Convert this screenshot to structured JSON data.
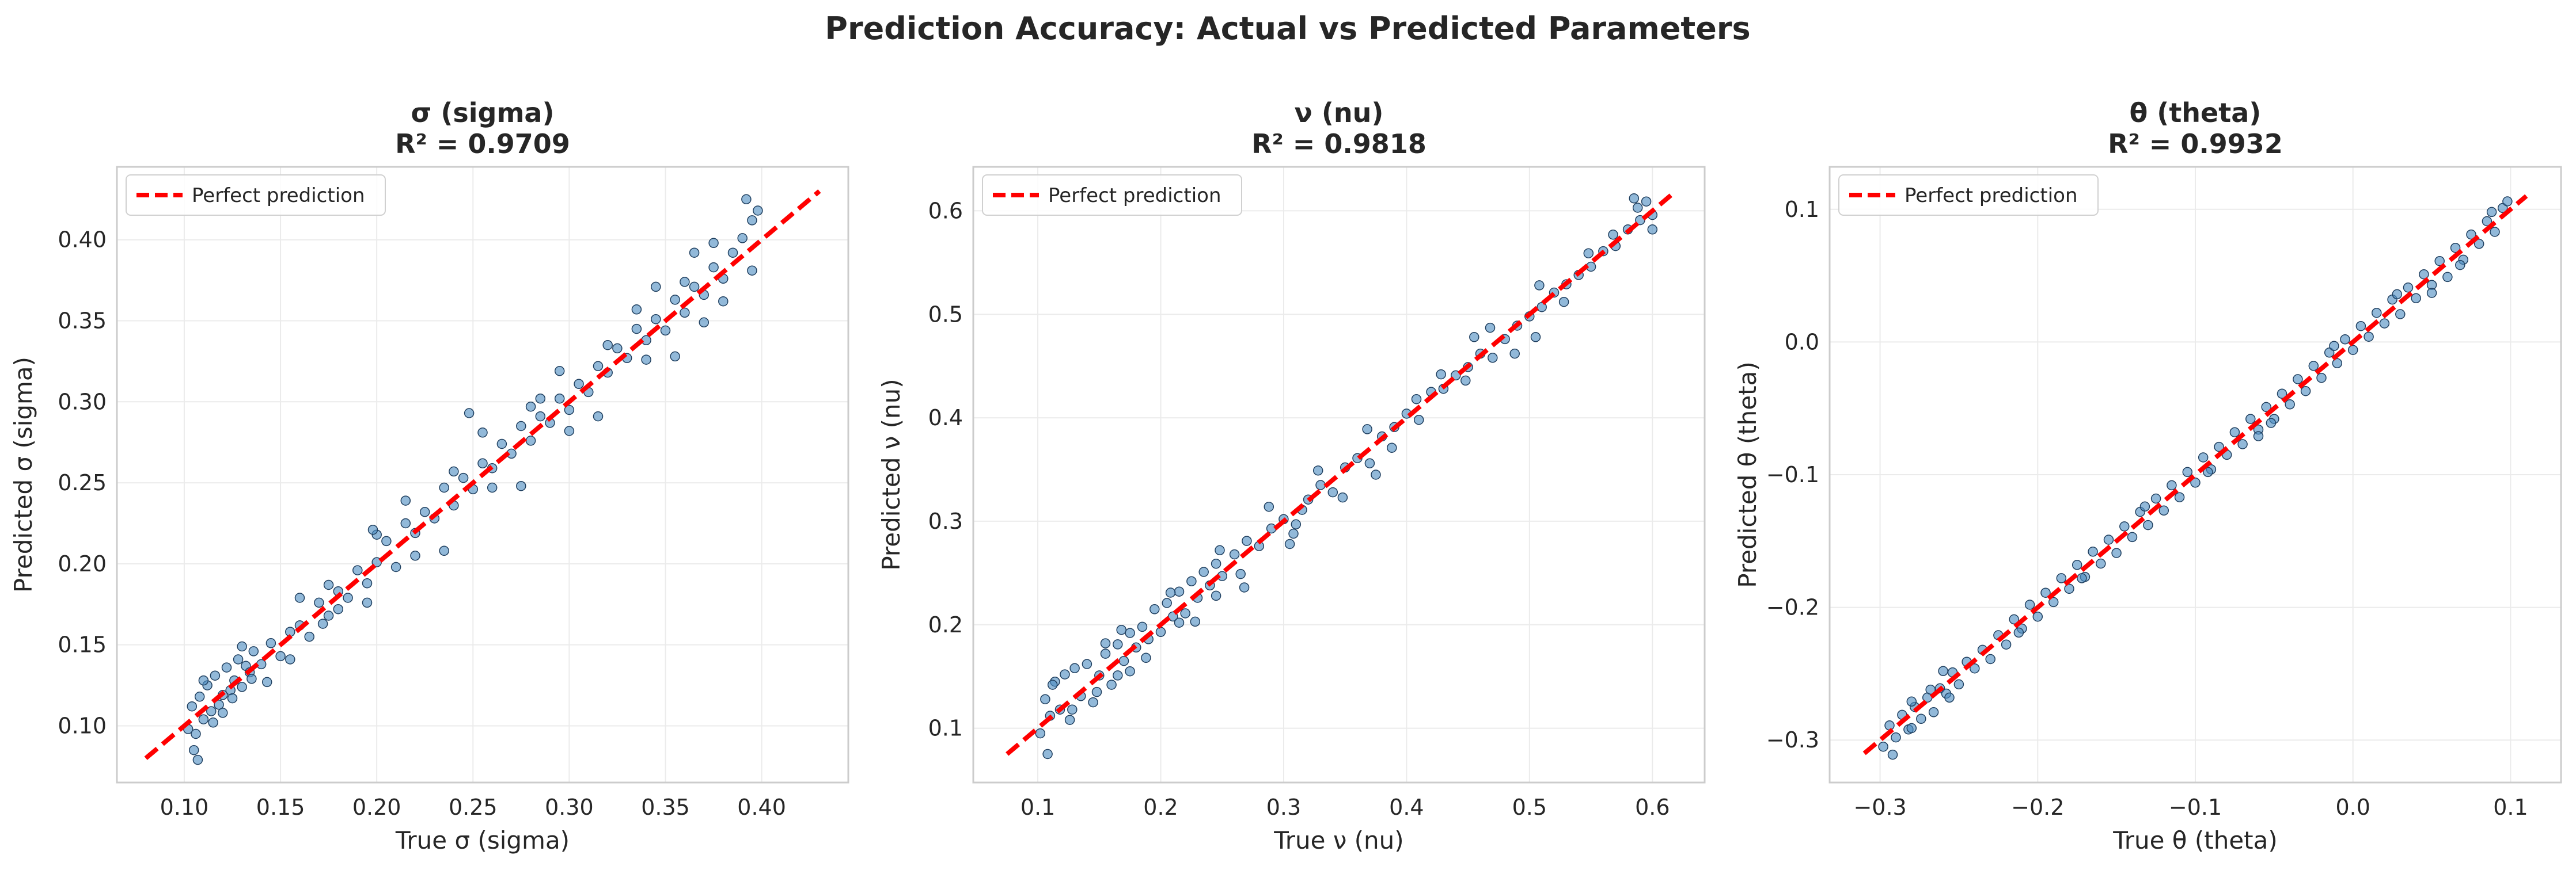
{
  "figure": {
    "title": "Prediction Accuracy: Actual vs Predicted Parameters"
  },
  "colors": {
    "point_fill": "#4a8bbf",
    "point_edge": "#1f3f5f",
    "reference_line": "#ff0000",
    "grid": "#ebebeb",
    "frame": "#cccccc"
  },
  "chart_data": [
    {
      "type": "scatter",
      "title_line1": "σ (sigma)",
      "title_line2": "R² = 0.9709",
      "xlabel": "True σ (sigma)",
      "ylabel": "Predicted σ (sigma)",
      "xlim": [
        0.065,
        0.445
      ],
      "ylim": [
        0.065,
        0.445
      ],
      "xticks": [
        0.1,
        0.15,
        0.2,
        0.25,
        0.3,
        0.35,
        0.4
      ],
      "yticks": [
        0.1,
        0.15,
        0.2,
        0.25,
        0.3,
        0.35,
        0.4
      ],
      "xtick_labels": [
        "0.10",
        "0.15",
        "0.20",
        "0.25",
        "0.30",
        "0.35",
        "0.40"
      ],
      "ytick_labels": [
        "0.10",
        "0.15",
        "0.20",
        "0.25",
        "0.30",
        "0.35",
        "0.40"
      ],
      "grid": true,
      "legend": {
        "label": "Perfect prediction",
        "position": "top-left"
      },
      "reference_line": {
        "from": [
          0.08,
          0.08
        ],
        "to": [
          0.43,
          0.43
        ]
      },
      "points": {
        "x": [
          0.102,
          0.104,
          0.106,
          0.108,
          0.11,
          0.112,
          0.114,
          0.116,
          0.118,
          0.12,
          0.122,
          0.124,
          0.126,
          0.128,
          0.13,
          0.132,
          0.134,
          0.136,
          0.14,
          0.145,
          0.15,
          0.155,
          0.16,
          0.165,
          0.17,
          0.175,
          0.18,
          0.185,
          0.19,
          0.195,
          0.2,
          0.205,
          0.21,
          0.215,
          0.22,
          0.225,
          0.23,
          0.235,
          0.24,
          0.245,
          0.25,
          0.255,
          0.26,
          0.265,
          0.27,
          0.275,
          0.28,
          0.285,
          0.29,
          0.295,
          0.3,
          0.305,
          0.31,
          0.315,
          0.32,
          0.325,
          0.33,
          0.335,
          0.34,
          0.345,
          0.35,
          0.355,
          0.36,
          0.365,
          0.37,
          0.375,
          0.38,
          0.385,
          0.39,
          0.395,
          0.105,
          0.115,
          0.125,
          0.135,
          0.155,
          0.175,
          0.195,
          0.215,
          0.235,
          0.255,
          0.275,
          0.295,
          0.315,
          0.335,
          0.355,
          0.375,
          0.395,
          0.11,
          0.12,
          0.13,
          0.16,
          0.18,
          0.2,
          0.22,
          0.24,
          0.26,
          0.28,
          0.3,
          0.32,
          0.34,
          0.36,
          0.38,
          0.392,
          0.398,
          0.37,
          0.365,
          0.345,
          0.285,
          0.248,
          0.198,
          0.172,
          0.143,
          0.107
        ],
        "y": [
          0.098,
          0.112,
          0.095,
          0.118,
          0.104,
          0.125,
          0.109,
          0.131,
          0.113,
          0.119,
          0.136,
          0.122,
          0.128,
          0.141,
          0.124,
          0.137,
          0.133,
          0.146,
          0.138,
          0.151,
          0.143,
          0.158,
          0.162,
          0.155,
          0.176,
          0.168,
          0.183,
          0.179,
          0.196,
          0.188,
          0.201,
          0.214,
          0.198,
          0.225,
          0.219,
          0.232,
          0.228,
          0.247,
          0.236,
          0.253,
          0.246,
          0.262,
          0.259,
          0.274,
          0.268,
          0.285,
          0.276,
          0.291,
          0.287,
          0.302,
          0.295,
          0.311,
          0.306,
          0.322,
          0.318,
          0.333,
          0.327,
          0.345,
          0.338,
          0.351,
          0.344,
          0.363,
          0.355,
          0.371,
          0.366,
          0.383,
          0.376,
          0.392,
          0.401,
          0.412,
          0.085,
          0.102,
          0.117,
          0.129,
          0.141,
          0.187,
          0.176,
          0.239,
          0.208,
          0.281,
          0.248,
          0.319,
          0.291,
          0.357,
          0.328,
          0.398,
          0.381,
          0.128,
          0.108,
          0.149,
          0.179,
          0.172,
          0.218,
          0.205,
          0.257,
          0.247,
          0.297,
          0.282,
          0.335,
          0.326,
          0.374,
          0.362,
          0.425,
          0.418,
          0.349,
          0.392,
          0.371,
          0.302,
          0.293,
          0.221,
          0.163,
          0.127,
          0.079
        ]
      }
    },
    {
      "type": "scatter",
      "title_line1": "ν (nu)",
      "title_line2": "R² = 0.9818",
      "xlabel": "True ν (nu)",
      "ylabel": "Predicted ν (nu)",
      "xlim": [
        0.0475,
        0.6425
      ],
      "ylim": [
        0.0475,
        0.6425
      ],
      "xticks": [
        0.1,
        0.2,
        0.3,
        0.4,
        0.5,
        0.6
      ],
      "yticks": [
        0.1,
        0.2,
        0.3,
        0.4,
        0.5,
        0.6
      ],
      "xtick_labels": [
        "0.1",
        "0.2",
        "0.3",
        "0.4",
        "0.5",
        "0.6"
      ],
      "ytick_labels": [
        "0.1",
        "0.2",
        "0.3",
        "0.4",
        "0.5",
        "0.6"
      ],
      "grid": true,
      "legend": {
        "label": "Perfect prediction",
        "position": "top-left"
      },
      "reference_line": {
        "from": [
          0.075,
          0.075
        ],
        "to": [
          0.615,
          0.615
        ]
      },
      "points": {
        "x": [
          0.102,
          0.106,
          0.11,
          0.114,
          0.118,
          0.122,
          0.126,
          0.13,
          0.135,
          0.14,
          0.145,
          0.15,
          0.155,
          0.16,
          0.165,
          0.17,
          0.175,
          0.18,
          0.185,
          0.19,
          0.195,
          0.2,
          0.205,
          0.21,
          0.215,
          0.22,
          0.225,
          0.23,
          0.235,
          0.24,
          0.245,
          0.25,
          0.26,
          0.27,
          0.28,
          0.29,
          0.3,
          0.31,
          0.32,
          0.33,
          0.34,
          0.35,
          0.36,
          0.37,
          0.38,
          0.39,
          0.4,
          0.41,
          0.42,
          0.43,
          0.44,
          0.45,
          0.46,
          0.47,
          0.48,
          0.49,
          0.5,
          0.51,
          0.52,
          0.53,
          0.54,
          0.55,
          0.56,
          0.57,
          0.58,
          0.59,
          0.595,
          0.6,
          0.108,
          0.128,
          0.148,
          0.168,
          0.188,
          0.208,
          0.228,
          0.248,
          0.268,
          0.288,
          0.308,
          0.328,
          0.348,
          0.368,
          0.388,
          0.408,
          0.428,
          0.448,
          0.468,
          0.488,
          0.508,
          0.528,
          0.548,
          0.568,
          0.588,
          0.155,
          0.175,
          0.245,
          0.305,
          0.375,
          0.455,
          0.505,
          0.585,
          0.6,
          0.112,
          0.165,
          0.215,
          0.265,
          0.315
        ],
        "y": [
          0.095,
          0.128,
          0.112,
          0.145,
          0.118,
          0.152,
          0.108,
          0.158,
          0.131,
          0.162,
          0.125,
          0.151,
          0.172,
          0.142,
          0.181,
          0.165,
          0.192,
          0.178,
          0.198,
          0.186,
          0.215,
          0.193,
          0.221,
          0.208,
          0.232,
          0.211,
          0.242,
          0.226,
          0.251,
          0.238,
          0.259,
          0.247,
          0.268,
          0.281,
          0.276,
          0.293,
          0.302,
          0.297,
          0.321,
          0.335,
          0.328,
          0.352,
          0.361,
          0.356,
          0.382,
          0.391,
          0.404,
          0.398,
          0.425,
          0.428,
          0.441,
          0.449,
          0.462,
          0.458,
          0.476,
          0.489,
          0.498,
          0.507,
          0.521,
          0.529,
          0.538,
          0.546,
          0.561,
          0.566,
          0.582,
          0.591,
          0.609,
          0.596,
          0.075,
          0.118,
          0.135,
          0.195,
          0.168,
          0.231,
          0.203,
          0.272,
          0.236,
          0.314,
          0.288,
          0.349,
          0.323,
          0.389,
          0.371,
          0.418,
          0.442,
          0.436,
          0.487,
          0.462,
          0.528,
          0.512,
          0.559,
          0.577,
          0.603,
          0.182,
          0.155,
          0.228,
          0.278,
          0.345,
          0.478,
          0.478,
          0.612,
          0.582,
          0.142,
          0.151,
          0.202,
          0.249,
          0.311
        ]
      }
    },
    {
      "type": "scatter",
      "title_line1": "θ (theta)",
      "title_line2": "R² = 0.9932",
      "xlabel": "True θ (theta)",
      "ylabel": "Predicted θ (theta)",
      "xlim": [
        -0.332,
        0.132
      ],
      "ylim": [
        -0.332,
        0.132
      ],
      "xticks": [
        -0.3,
        -0.2,
        -0.1,
        0.0,
        0.1
      ],
      "yticks": [
        -0.3,
        -0.2,
        -0.1,
        0.0,
        0.1
      ],
      "xtick_labels": [
        "−0.3",
        "−0.2",
        "−0.1",
        "0.0",
        "0.1"
      ],
      "ytick_labels": [
        "−0.3",
        "−0.2",
        "−0.1",
        "0.0",
        "0.1"
      ],
      "grid": true,
      "legend": {
        "label": "Perfect prediction",
        "position": "top-left"
      },
      "reference_line": {
        "from": [
          -0.31,
          -0.31
        ],
        "to": [
          0.11,
          0.11
        ]
      },
      "points": {
        "x": [
          -0.298,
          -0.294,
          -0.29,
          -0.286,
          -0.282,
          -0.278,
          -0.274,
          -0.27,
          -0.266,
          -0.262,
          -0.258,
          -0.254,
          -0.25,
          -0.245,
          -0.24,
          -0.235,
          -0.23,
          -0.225,
          -0.22,
          -0.215,
          -0.21,
          -0.205,
          -0.2,
          -0.195,
          -0.19,
          -0.185,
          -0.18,
          -0.175,
          -0.17,
          -0.165,
          -0.16,
          -0.155,
          -0.15,
          -0.145,
          -0.14,
          -0.135,
          -0.13,
          -0.125,
          -0.12,
          -0.115,
          -0.11,
          -0.105,
          -0.1,
          -0.095,
          -0.09,
          -0.085,
          -0.08,
          -0.075,
          -0.07,
          -0.065,
          -0.06,
          -0.055,
          -0.05,
          -0.045,
          -0.04,
          -0.035,
          -0.03,
          -0.025,
          -0.02,
          -0.015,
          -0.01,
          -0.005,
          0.0,
          0.005,
          0.01,
          0.015,
          0.02,
          0.025,
          0.03,
          0.035,
          0.04,
          0.045,
          0.05,
          0.055,
          0.06,
          0.065,
          0.07,
          0.075,
          0.08,
          0.085,
          0.09,
          0.095,
          0.098,
          -0.292,
          -0.28,
          -0.268,
          -0.256,
          -0.212,
          -0.172,
          -0.132,
          -0.092,
          -0.052,
          -0.012,
          0.028,
          0.068,
          0.088,
          0.05,
          -0.06,
          -0.28,
          -0.26
        ],
        "y": [
          -0.305,
          -0.289,
          -0.298,
          -0.281,
          -0.292,
          -0.275,
          -0.284,
          -0.268,
          -0.279,
          -0.261,
          -0.265,
          -0.249,
          -0.258,
          -0.241,
          -0.246,
          -0.232,
          -0.239,
          -0.221,
          -0.228,
          -0.209,
          -0.216,
          -0.198,
          -0.207,
          -0.189,
          -0.196,
          -0.178,
          -0.186,
          -0.168,
          -0.177,
          -0.158,
          -0.167,
          -0.149,
          -0.159,
          -0.139,
          -0.147,
          -0.128,
          -0.138,
          -0.118,
          -0.127,
          -0.108,
          -0.117,
          -0.098,
          -0.106,
          -0.087,
          -0.096,
          -0.079,
          -0.085,
          -0.068,
          -0.077,
          -0.058,
          -0.066,
          -0.049,
          -0.058,
          -0.039,
          -0.047,
          -0.028,
          -0.037,
          -0.018,
          -0.027,
          -0.008,
          -0.016,
          0.002,
          -0.006,
          0.012,
          0.004,
          0.022,
          0.014,
          0.032,
          0.021,
          0.041,
          0.033,
          0.051,
          0.043,
          0.061,
          0.049,
          0.071,
          0.062,
          0.081,
          0.074,
          0.091,
          0.083,
          0.101,
          0.106,
          -0.311,
          -0.271,
          -0.262,
          -0.268,
          -0.219,
          -0.178,
          -0.124,
          -0.098,
          -0.061,
          -0.003,
          0.036,
          0.058,
          0.098,
          0.037,
          -0.071,
          -0.291,
          -0.248
        ]
      }
    }
  ]
}
